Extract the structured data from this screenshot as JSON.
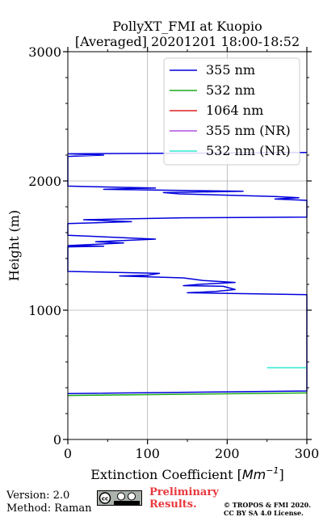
{
  "chart_data": {
    "type": "line",
    "title": "PollyXT_FMI at Kuopio",
    "subtitle": "[Averaged] 20201201 18:00-18:52",
    "xlabel": "Extinction Coefficient [",
    "xlabel_unit": "Mm",
    "xlabel_unit_exp": "−1",
    "xlabel_close": "]",
    "ylabel": "Height (m)",
    "xlim": [
      0,
      300
    ],
    "ylim": [
      0,
      3000
    ],
    "xticks": [
      "0",
      "100",
      "200",
      "300"
    ],
    "yticks": [
      "0",
      "1000",
      "2000",
      "3000"
    ],
    "xtick_values": [
      0,
      100,
      200,
      300
    ],
    "ytick_values": [
      0,
      1000,
      2000,
      3000
    ],
    "grid": true,
    "legend_position": "top-right",
    "series": [
      {
        "name": "355 nm",
        "color": "#0000dd",
        "points": [
          [
            0,
            355
          ],
          [
            300,
            375
          ],
          [
            300,
            1100
          ],
          [
            300,
            1120
          ],
          [
            150,
            1135
          ],
          [
            186,
            1145
          ],
          [
            210,
            1160
          ],
          [
            195,
            1185
          ],
          [
            145,
            1190
          ],
          [
            165,
            1200
          ],
          [
            210,
            1215
          ],
          [
            170,
            1230
          ],
          [
            145,
            1250
          ],
          [
            65,
            1265
          ],
          [
            100,
            1270
          ],
          [
            115,
            1285
          ],
          [
            0,
            1300
          ],
          [
            0,
            1490
          ],
          [
            45,
            1495
          ],
          [
            0,
            1500
          ],
          [
            70,
            1520
          ],
          [
            35,
            1530
          ],
          [
            110,
            1550
          ],
          [
            0,
            1580
          ],
          [
            0,
            1670
          ],
          [
            80,
            1685
          ],
          [
            20,
            1700
          ],
          [
            145,
            1715
          ],
          [
            300,
            1720
          ],
          [
            300,
            1850
          ],
          [
            260,
            1860
          ],
          [
            290,
            1870
          ],
          [
            260,
            1880
          ],
          [
            140,
            1900
          ],
          [
            120,
            1910
          ],
          [
            220,
            1920
          ],
          [
            45,
            1935
          ],
          [
            110,
            1945
          ],
          [
            0,
            1960
          ],
          [
            0,
            2190
          ],
          [
            45,
            2200
          ],
          [
            0,
            2210
          ],
          [
            300,
            2220
          ]
        ]
      },
      {
        "name": "532 nm",
        "color": "#1aaa1a",
        "points": [
          [
            0,
            340
          ],
          [
            300,
            360
          ]
        ]
      },
      {
        "name": "1064 nm",
        "color": "#dd2222",
        "points": []
      },
      {
        "name": "355 nm (NR)",
        "color": "#b050dd",
        "points": []
      },
      {
        "name": "532 nm (NR)",
        "color": "#30e8d0",
        "points": [
          [
            250,
            555
          ],
          [
            300,
            555
          ]
        ]
      }
    ]
  },
  "footer": {
    "version": "Version: 2.0",
    "method": "Method: Raman",
    "prelim_1": "Preliminary",
    "prelim_2": "Results.",
    "copyright_1": "© TROPOS & FMI 2020.",
    "copyright_2": "CC BY SA 4.0 License.",
    "license_icon": "cc-by-sa-icon"
  }
}
